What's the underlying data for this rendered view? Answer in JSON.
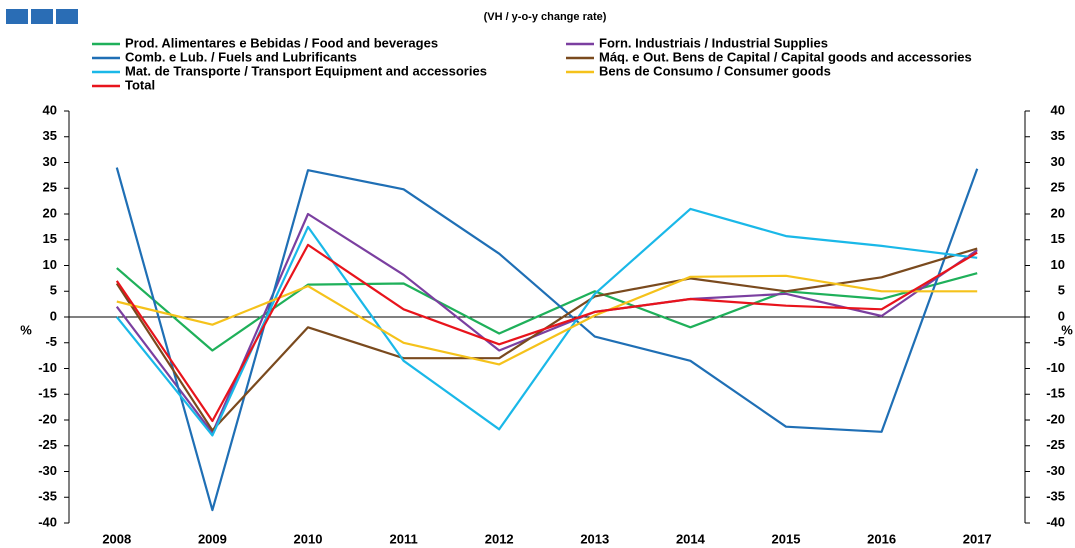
{
  "chart_data": {
    "type": "line",
    "subtitle": "(VH / y-o-y change rate)",
    "y_label": "%",
    "y2_label": "%",
    "categories": [
      "2008",
      "2009",
      "2010",
      "2011",
      "2012",
      "2013",
      "2014",
      "2015",
      "2016",
      "2017"
    ],
    "ylim": [
      -40,
      40
    ],
    "yticks": [
      -40,
      -35,
      -30,
      -25,
      -20,
      -15,
      -10,
      -5,
      0,
      5,
      10,
      15,
      20,
      25,
      30,
      35,
      40
    ],
    "y2lim": [
      -40,
      40
    ],
    "y2ticks": [
      -40,
      -35,
      -30,
      -25,
      -20,
      -15,
      -10,
      -5,
      0,
      5,
      10,
      15,
      20,
      25,
      30,
      35,
      40
    ],
    "grid": false,
    "legend": "top",
    "series": [
      {
        "name": "Prod. Alimentares e Bebidas / Food and beverages",
        "color": "#1fb05a",
        "values": [
          9.5,
          -6.5,
          6.3,
          6.5,
          -3.2,
          5,
          -2,
          5,
          3.5,
          8.5
        ]
      },
      {
        "name": "Forn. Industriais / Industrial Supplies",
        "color": "#7b3fa0",
        "values": [
          2,
          -22.5,
          20,
          8.2,
          -6.5,
          1,
          3.5,
          4.5,
          0.2,
          13
        ]
      },
      {
        "name": "Comb. e Lub. /  Fuels and Lubrificants",
        "color": "#1f6fb5",
        "values": [
          29,
          -37.5,
          28.5,
          24.8,
          12.3,
          -3.8,
          -8.5,
          -21.3,
          -22.3,
          28.8
        ]
      },
      {
        "name": "Máq. e Out. Bens de Capital / Capital goods and accessories",
        "color": "#7a4a1e",
        "values": [
          6.5,
          -22,
          -2,
          -8,
          -8,
          4,
          7.5,
          5,
          7.7,
          13.3
        ]
      },
      {
        "name": "Mat. de Transporte / Transport Equipment and accessories",
        "color": "#1ab8e8",
        "values": [
          0,
          -23,
          17.5,
          -8.5,
          -21.8,
          4.5,
          21,
          15.7,
          13.8,
          11.5
        ]
      },
      {
        "name": "Bens de Consumo / Consumer goods",
        "color": "#f5c21b",
        "values": [
          3,
          -1.5,
          6,
          -5,
          -9.2,
          0.3,
          7.8,
          8,
          5,
          5
        ]
      },
      {
        "name": "Total",
        "color": "#e8141c",
        "values": [
          7,
          -20.2,
          14,
          1.5,
          -5.3,
          1,
          3.5,
          2.2,
          1.5,
          12.5
        ]
      }
    ]
  }
}
